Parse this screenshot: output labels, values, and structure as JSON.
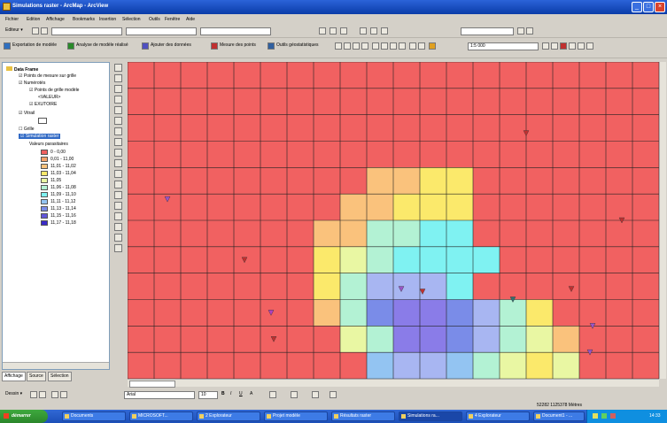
{
  "window": {
    "title": "Simulations raster - ArcMap - ArcView",
    "controls": [
      "_",
      "□",
      "×"
    ]
  },
  "menu": [
    "Fichier",
    "Edition",
    "Affichage",
    "Bookmarks",
    "Insertion",
    "Sélection",
    "Outils",
    "Fenêtre",
    "Aide"
  ],
  "toolbar1": {
    "editor_label": "Editeur ▾"
  },
  "toolbar2": {
    "buttons": [
      "Exportation de modèle",
      "Analyse de modèle réalisé",
      "Ajouter des données",
      "Mesure des points",
      "Outils géostatistiques"
    ],
    "scale_value": "1:5 000"
  },
  "toc": {
    "title": "Data Frame",
    "layers": [
      {
        "label": "Points de mesure sur grille",
        "depth": 1
      },
      {
        "label": "Numérotés",
        "depth": 1
      },
      {
        "label": "Points de grille modèle",
        "depth": 2
      },
      {
        "label": "<VALEUR>",
        "depth": 3
      },
      {
        "label": "EXUTOIRE",
        "depth": 2
      },
      {
        "label": "Vitrail",
        "depth": 1
      },
      {
        "label": "Grille",
        "depth": 1
      },
      {
        "label": "Simulation raster",
        "depth": 1
      },
      {
        "label": "Valeurs parasitaires",
        "depth": 2
      }
    ],
    "legend": [
      {
        "label": "0 - 0,00",
        "color": "#f16161"
      },
      {
        "label": "0,01 - 11,00",
        "color": "#f7a46c"
      },
      {
        "label": "11,01 - 11,02",
        "color": "#fac27c"
      },
      {
        "label": "11,03 - 11,04",
        "color": "#fbe96b"
      },
      {
        "label": "11,05",
        "color": "#e9f7a3"
      },
      {
        "label": "11,06 - 11,08",
        "color": "#b3f2d4"
      },
      {
        "label": "11,09 - 11,10",
        "color": "#7ff2f2"
      },
      {
        "label": "11,11 - 11,12",
        "color": "#93c4f2"
      },
      {
        "label": "11,13 - 11,14",
        "color": "#7a8ce8"
      },
      {
        "label": "11,15 - 11,16",
        "color": "#6256d9"
      },
      {
        "label": "11,17 - 11,18",
        "color": "#3a2ac8"
      }
    ],
    "tabs": [
      "Affichage",
      "Source",
      "Sélection"
    ]
  },
  "map_grid": {
    "cols": 20,
    "rows": 12,
    "background": "#f16161",
    "palette": {
      "r": "#f16161",
      "o": "#f7a46c",
      "h": "#fac27c",
      "y": "#fbe96b",
      "l": "#e9f7a3",
      "g": "#b3f2d4",
      "c": "#7ff2f2",
      "s": "#93c4f2",
      "b": "#a8b6f2",
      "p": "#7a8ce8",
      "v": "#8a7ce8"
    },
    "cells": [
      "rrrrrrrrrrrrrrrrrrrr",
      "rrrrrrrrrrrrrrrrrrrr",
      "rrrrrrrrrrrrrrrrrrrr",
      "rrrrrrrrrrrrrrrrrrrr",
      "rrrrrrrrrhhyyrrrrrrr",
      "rrrrrrrrhhyyyrrrrrrr",
      "rrrrrrrhhggccrrrrrrr",
      "rrrrrrrylgccccrrrrrr",
      "rrrrrrrygbbbcrrrrrrr",
      "rrrrrrrhgpvvpbgyrrrr",
      "rrrrrrrrlgvvpbglhrrr",
      "rrrrrrrrrsbbsglylrrr"
    ]
  },
  "markers": [
    {
      "col": 1.5,
      "row": 5.2,
      "color": "#9a55c8"
    },
    {
      "col": 4.4,
      "row": 7.5,
      "color": "#c03030"
    },
    {
      "col": 5.4,
      "row": 9.5,
      "color": "#b040c0"
    },
    {
      "col": 5.5,
      "row": 10.5,
      "color": "#c03030"
    },
    {
      "col": 10.3,
      "row": 8.6,
      "color": "#9a55c8"
    },
    {
      "col": 11.1,
      "row": 8.7,
      "color": "#c03030"
    },
    {
      "col": 14.5,
      "row": 9.0,
      "color": "#307070"
    },
    {
      "col": 15.0,
      "row": 2.7,
      "color": "#c03030"
    },
    {
      "col": 16.7,
      "row": 8.6,
      "color": "#c03030"
    },
    {
      "col": 17.5,
      "row": 10.0,
      "color": "#9a55c8"
    },
    {
      "col": 17.4,
      "row": 11.0,
      "color": "#9a55c8"
    },
    {
      "col": 18.6,
      "row": 6.0,
      "color": "#c03030"
    }
  ],
  "drawbar": {
    "drawing_label": "Dessin ▾",
    "font_name": "Arial",
    "font_size": "10",
    "tools": [
      "B",
      "I",
      "U",
      "A"
    ]
  },
  "statusbar": {
    "coords": "52282 1125378 Mètres"
  },
  "taskbar": {
    "start": "démarrer",
    "items": [
      "Documents",
      "MICROSOFT...",
      "2 Explorateur",
      "Projet modèle",
      "Résultats raster",
      "Simulations ra...",
      "4 Explorateur",
      "Document1 - ..."
    ],
    "clock": "14:33"
  }
}
